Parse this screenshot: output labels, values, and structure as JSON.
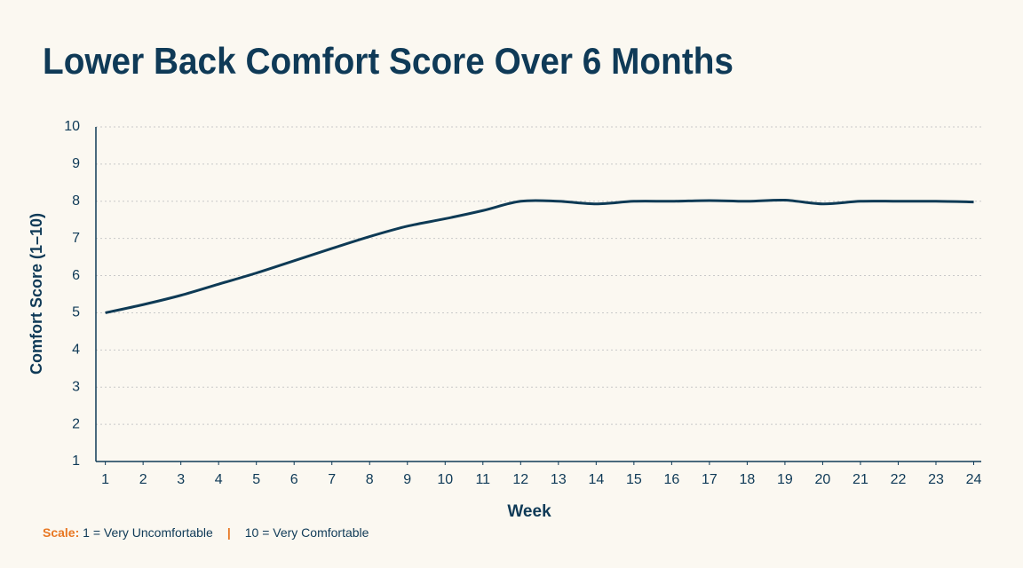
{
  "chart_data": {
    "type": "line",
    "title": "Lower Back Comfort Score Over 6 Months",
    "x_label": "Week",
    "y_label": "Comfort Score (1–10)",
    "x": [
      1,
      2,
      3,
      4,
      5,
      6,
      7,
      8,
      9,
      10,
      11,
      12,
      13,
      14,
      15,
      16,
      17,
      18,
      19,
      20,
      21,
      22,
      23,
      24
    ],
    "series": [
      {
        "name": "Comfort Score",
        "color": "#0e3a55",
        "values": [
          5.0,
          5.22,
          5.47,
          5.77,
          6.07,
          6.4,
          6.73,
          7.05,
          7.33,
          7.53,
          7.75,
          8.0,
          8.0,
          7.93,
          8.0,
          8.0,
          8.02,
          8.0,
          8.03,
          7.93,
          8.0,
          8.0,
          8.0,
          7.98
        ]
      }
    ],
    "xlim": [
      0.75,
      24.2
    ],
    "xticks": [
      1,
      2,
      3,
      4,
      5,
      6,
      7,
      8,
      9,
      10,
      11,
      12,
      13,
      14,
      15,
      16,
      17,
      18,
      19,
      20,
      21,
      22,
      23,
      24
    ],
    "ylim": [
      1,
      10
    ],
    "yticks": [
      1,
      2,
      3,
      4,
      5,
      6,
      7,
      8,
      9,
      10
    ],
    "grid": true,
    "note_label": "Scale:",
    "note_low": "1 = Very Uncomfortable",
    "note_separator": "|",
    "note_high": "10 = Very Comfortable"
  }
}
